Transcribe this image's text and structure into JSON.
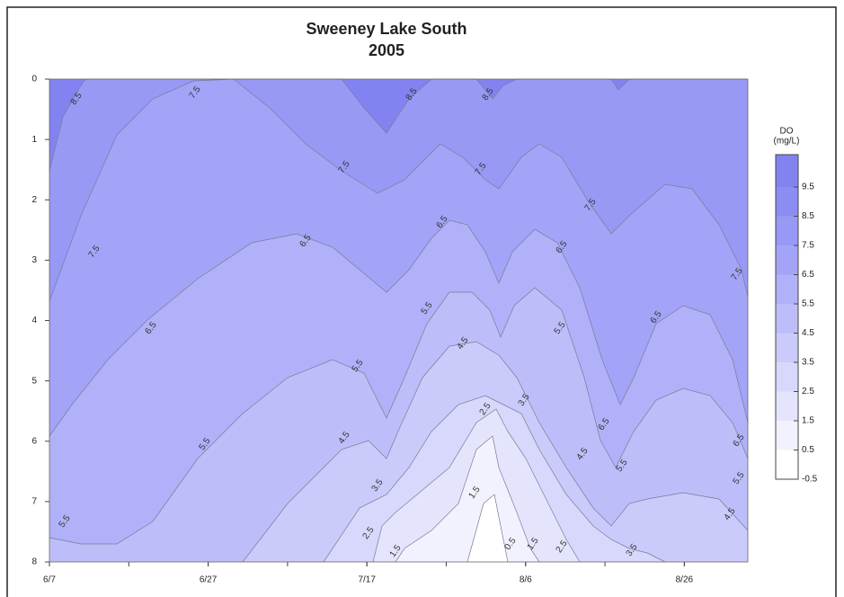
{
  "chart_data": {
    "type": "contour",
    "title": "Sweeney Lake South",
    "subtitle": "2005",
    "colorbar_title": "DO",
    "colorbar_unit": "(mg/L)",
    "xlim": [
      158,
      246
    ],
    "xticks": [
      {
        "value": 158,
        "label": "6/7"
      },
      {
        "value": 178,
        "label": "6/27"
      },
      {
        "value": 198,
        "label": "7/17"
      },
      {
        "value": 218,
        "label": "8/6"
      },
      {
        "value": 238,
        "label": "8/26"
      }
    ],
    "ylim": [
      0,
      8
    ],
    "y_inverted": true,
    "yticks": [
      0,
      1,
      2,
      3,
      4,
      5,
      6,
      7,
      8
    ],
    "levels": [
      -0.5,
      0.5,
      1.5,
      2.5,
      3.5,
      4.5,
      5.5,
      6.5,
      7.5,
      8.5,
      9.5
    ],
    "colors": [
      "#ffffff",
      "#f2f2fe",
      "#e4e5fc",
      "#d7d8fb",
      "#cacbfa",
      "#bdbef9",
      "#b0b1f8",
      "#a3a4f7",
      "#9899f5",
      "#8c8df3",
      "#8283f1"
    ],
    "contour_levels": [
      8.5,
      7.5,
      6.5,
      5.5,
      4.5,
      3.5,
      2.5,
      1.5,
      0.5
    ],
    "contour_labels": [
      8.5,
      8.5,
      8.5,
      7.5,
      7.5,
      7.5,
      7.5,
      7.5,
      7.5,
      6.5,
      6.5,
      6.5,
      6.5,
      6.5,
      6.5,
      6.5,
      5.5,
      5.5,
      5.5,
      5.5,
      5.5,
      5.5,
      5.5,
      4.5,
      4.5,
      4.5,
      4.5,
      3.5,
      3.5,
      3.5,
      2.5,
      2.5,
      2.5,
      1.5,
      1.5,
      1.5,
      0.5
    ]
  }
}
